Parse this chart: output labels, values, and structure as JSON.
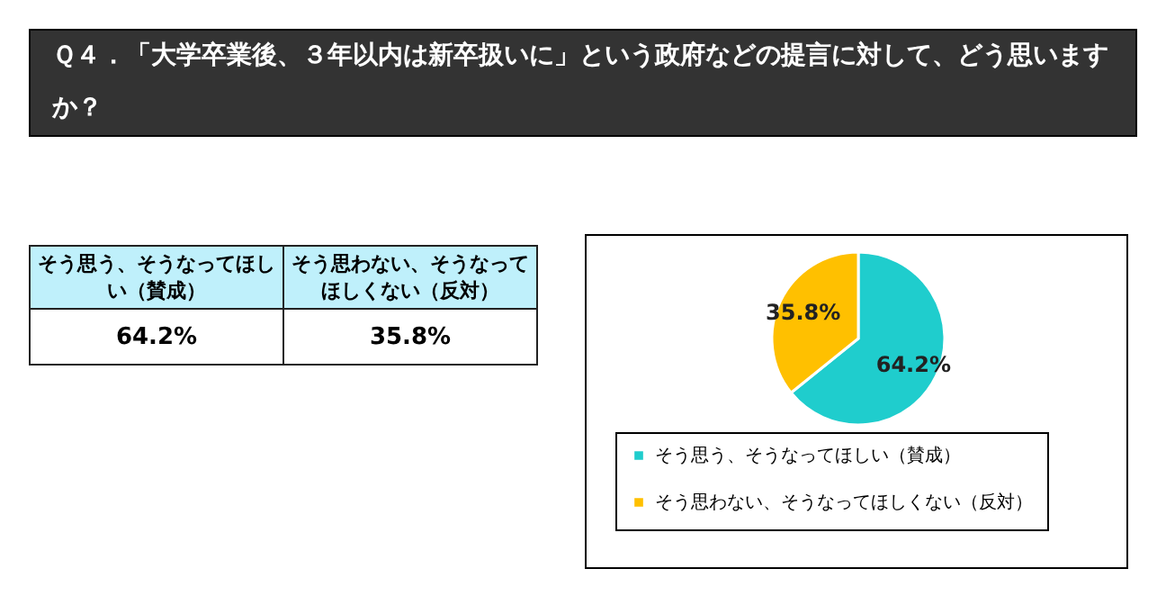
{
  "chart_data": {
    "type": "pie",
    "title": "Ｑ４．「大学卒業後、３年以内は新卒扱いに」という政府などの提言に対して、どう思いますか？",
    "categories": [
      "そう思う、そうなってほしい（賛成）",
      "そう思わない、そうなってほしくない（反対）"
    ],
    "values": [
      64.2,
      35.8
    ],
    "colors": [
      "#1fcdcd",
      "#ffc000"
    ],
    "value_labels": [
      "64.2%",
      "35.8%"
    ],
    "legend": "bottom"
  }
}
